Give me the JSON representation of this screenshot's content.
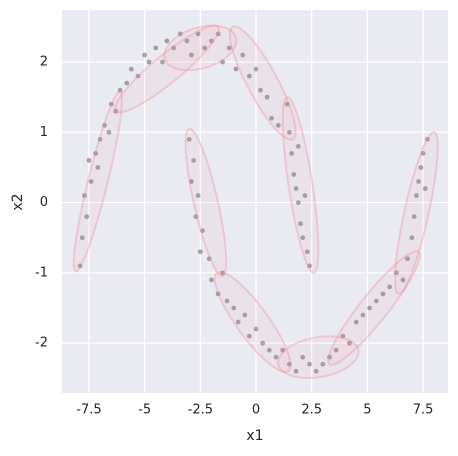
{
  "chart_data": {
    "type": "scatter",
    "x_label": "x1",
    "y_label": "x2",
    "xlim": [
      -8.71,
      8.62
    ],
    "ylim": [
      -2.71,
      2.74
    ],
    "xticks": [
      -7.5,
      -5.0,
      -2.5,
      0.0,
      2.5,
      5.0,
      7.5
    ],
    "yticks": [
      -2,
      -1,
      0,
      1,
      2
    ],
    "grid": true,
    "color": "#555555",
    "x": [
      -7.9,
      -7.8,
      -7.6,
      -7.7,
      -7.4,
      -7.5,
      -7.2,
      -7.0,
      -7.1,
      -6.8,
      -6.6,
      -6.5,
      -6.3,
      -6.1,
      -5.8,
      -5.6,
      -5.3,
      -5.0,
      -4.8,
      -4.5,
      -4.2,
      -4.0,
      -3.7,
      -3.4,
      -3.1,
      -2.9,
      -2.6,
      -2.3,
      -2.0,
      -1.7,
      -1.5,
      -1.2,
      -0.9,
      -0.6,
      -0.3,
      0.0,
      0.2,
      0.5,
      0.7,
      1.0,
      1.4,
      1.5,
      1.6,
      1.7,
      1.8,
      1.9,
      2.0,
      2.1,
      2.3,
      2.4,
      1.9,
      2.2,
      -3.0,
      -2.8,
      -2.9,
      -2.6,
      -2.7,
      -2.4,
      -2.5,
      -2.1,
      -2.0,
      -1.7,
      -1.5,
      -1.3,
      -1.0,
      -0.8,
      -0.5,
      -0.3,
      0.0,
      0.3,
      0.6,
      0.9,
      1.2,
      1.5,
      1.8,
      2.1,
      2.4,
      2.7,
      3.0,
      3.3,
      3.6,
      3.9,
      4.2,
      4.5,
      4.8,
      5.1,
      5.4,
      5.7,
      6.0,
      6.3,
      6.6,
      6.8,
      7.0,
      7.1,
      7.2,
      7.3,
      7.4,
      7.5,
      7.7,
      7.6
    ],
    "values": [
      -0.9,
      -0.5,
      -0.2,
      0.1,
      0.3,
      0.6,
      0.7,
      0.9,
      0.5,
      1.1,
      1.0,
      1.4,
      1.3,
      1.6,
      1.7,
      1.9,
      1.8,
      2.1,
      2.0,
      2.2,
      2.0,
      2.3,
      2.2,
      2.4,
      2.3,
      2.1,
      2.4,
      2.2,
      2.3,
      2.4,
      2.0,
      2.2,
      1.9,
      2.1,
      1.8,
      1.9,
      1.6,
      1.5,
      1.2,
      1.1,
      1.4,
      1.0,
      0.7,
      0.4,
      0.2,
      0.0,
      -0.3,
      -0.5,
      -0.7,
      -0.9,
      0.8,
      0.1,
      0.9,
      0.6,
      0.3,
      0.1,
      -0.2,
      -0.4,
      -0.7,
      -0.8,
      -1.1,
      -1.3,
      -1.0,
      -1.4,
      -1.5,
      -1.7,
      -1.6,
      -1.9,
      -1.8,
      -2.0,
      -2.1,
      -2.2,
      -2.1,
      -2.3,
      -2.4,
      -2.2,
      -2.3,
      -2.4,
      -2.3,
      -2.2,
      -2.1,
      -1.9,
      -2.0,
      -1.7,
      -1.6,
      -1.5,
      -1.4,
      -1.3,
      -1.2,
      -1.0,
      -1.1,
      -0.8,
      -0.5,
      -0.2,
      0.1,
      0.3,
      0.5,
      0.7,
      0.9,
      0.2
    ],
    "ellipse_color": "#f08c9a",
    "ellipses": [
      {
        "center": [
          -7.1,
          0.3
        ],
        "axis1": [
          1.0,
          1.28
        ],
        "axis2": [
          0.42,
          -0.04
        ]
      },
      {
        "center": [
          -4.0,
          1.9
        ],
        "axis1": [
          2.3,
          0.6
        ],
        "axis2": [
          0.4,
          -0.15
        ]
      },
      {
        "center": [
          -2.5,
          2.2
        ],
        "axis1": [
          1.6,
          0.15
        ],
        "axis2": [
          0.24,
          -0.28
        ]
      },
      {
        "center": [
          0.3,
          1.7
        ],
        "axis1": [
          1.35,
          -0.8
        ],
        "axis2": [
          0.6,
          0.1
        ]
      },
      {
        "center": [
          2.0,
          0.25
        ],
        "axis1": [
          0.6,
          -1.25
        ],
        "axis2": [
          0.53,
          0.025
        ]
      },
      {
        "center": [
          -2.25,
          0.0
        ],
        "axis1": [
          0.75,
          -1.05
        ],
        "axis2": [
          0.52,
          0.04
        ]
      },
      {
        "center": [
          -0.15,
          -1.7
        ],
        "axis1": [
          1.6,
          -0.7
        ],
        "axis2": [
          0.58,
          0.13
        ]
      },
      {
        "center": [
          2.8,
          -2.2
        ],
        "axis1": [
          1.8,
          0.1
        ],
        "axis2": [
          0.15,
          -0.28
        ]
      },
      {
        "center": [
          5.3,
          -1.5
        ],
        "axis1": [
          2.0,
          0.8
        ],
        "axis2": [
          0.49,
          -0.12
        ]
      },
      {
        "center": [
          7.2,
          -0.15
        ],
        "axis1": [
          0.8,
          1.15
        ],
        "axis2": [
          0.53,
          -0.037
        ]
      }
    ]
  }
}
